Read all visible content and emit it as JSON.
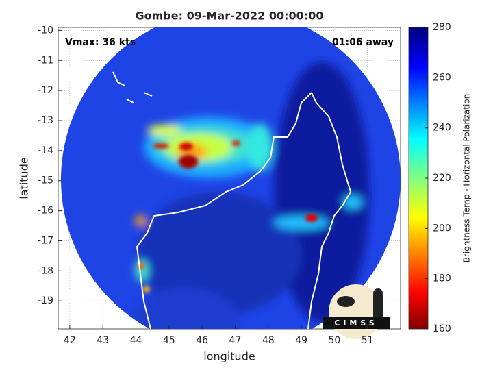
{
  "chart_data": {
    "type": "map",
    "title": "Gombe: 09-Mar-2022 00:00:00",
    "xlabel": "longitude",
    "ylabel": "latitude",
    "annotations": [
      "Vmax: 36 kts",
      "01:06 away"
    ],
    "xlim": [
      41.65,
      52
    ],
    "xticks": [
      42,
      43,
      44,
      45,
      46,
      47,
      48,
      49,
      50,
      51
    ],
    "ylim": [
      -19.93,
      -9.9
    ],
    "yticks": [
      -10,
      -11,
      -12,
      -13,
      -14,
      -15,
      -16,
      -17,
      -18,
      -19
    ],
    "grid": true,
    "colorbar": {
      "label": "Brightness Temp - Horizontal Polarization",
      "lim": [
        160,
        280
      ],
      "ticks": [
        160,
        180,
        200,
        220,
        240,
        260,
        280
      ]
    },
    "logo": "CIMSS"
  }
}
